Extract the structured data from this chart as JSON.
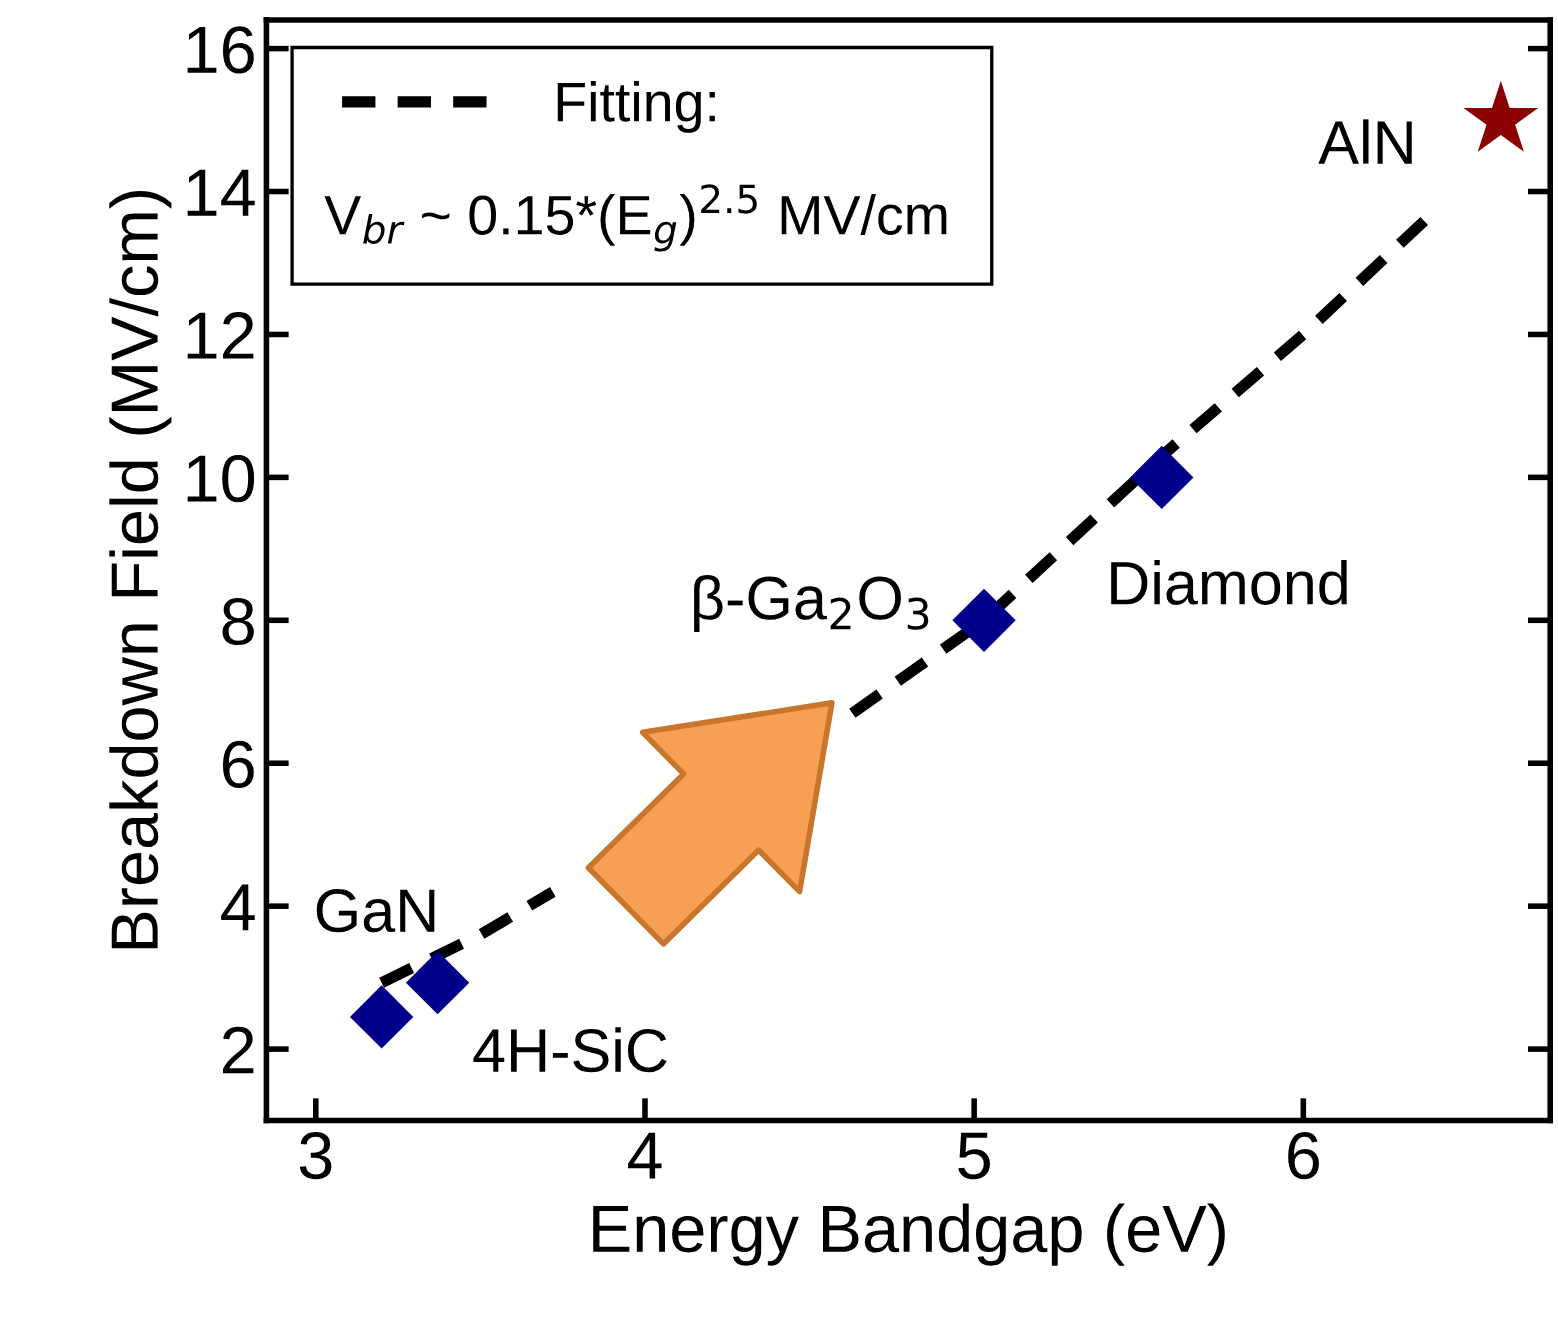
{
  "chart_data": {
    "type": "scatter",
    "xlabel": "Energy Bandgap (eV)",
    "ylabel": "Breakdown Field (MV/cm)",
    "xlim": [
      2.85,
      6.75
    ],
    "ylim": [
      1,
      16.4
    ],
    "xticks": [
      3,
      4,
      5,
      6
    ],
    "yticks": [
      2,
      4,
      6,
      8,
      10,
      12,
      14,
      16
    ],
    "grid": false,
    "legend": "top left",
    "series": [
      {
        "type": "line",
        "name": "Fitting:",
        "color": "#000000",
        "line_style": "dashed",
        "marker": "none",
        "x": [
          3.2,
          3.5,
          3.72,
          4.2,
          4.63,
          5.03,
          5.57,
          6.0,
          6.37
        ],
        "values": [
          2.93,
          3.6,
          4.2,
          null,
          6.7,
          8.0,
          10.3,
          12.0,
          13.6
        ]
      },
      {
        "color": "#00008b",
        "marker": "diamond",
        "x": [
          3.2,
          3.37,
          5.03,
          5.57
        ],
        "values": [
          2.45,
          2.93,
          8.0,
          10.0
        ]
      },
      {
        "color": "#8b0000",
        "marker": "star",
        "x": [
          6.6
        ],
        "values": [
          15.0
        ]
      }
    ],
    "annotations": [
      "V$_{br}$ ~ 0.15*(E$_{g}$)$^{2.5}$ MV/cm",
      {
        "text": "GaN",
        "x": 3.37,
        "y": 2.93
      },
      {
        "text": "4H-SiC",
        "x": 3.2,
        "y": 2.45
      },
      {
        "text": "β-Ga$_{2}$O$_{3}$",
        "x": 5.03,
        "y": 8.0
      },
      {
        "text": "Diamond",
        "x": 5.57,
        "y": 10.0
      },
      {
        "text": "AlN",
        "x": 6.6,
        "y": 15.0
      }
    ]
  }
}
